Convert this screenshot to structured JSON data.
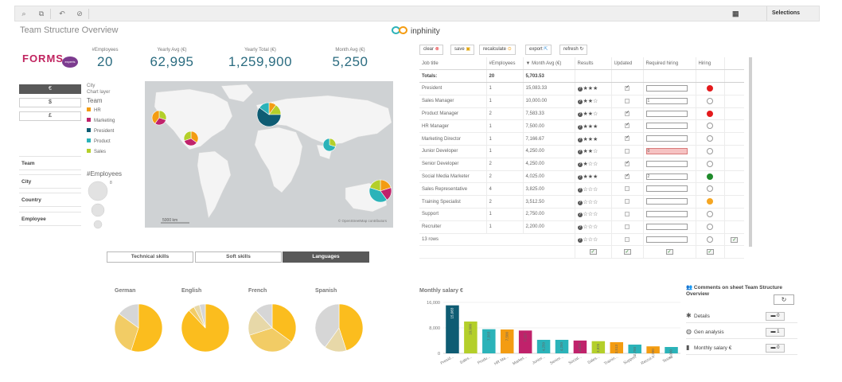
{
  "toolbar": {
    "selections_label": "Selections"
  },
  "sheet_title": "Team Structure Overview",
  "brand": {
    "name": "inphinity"
  },
  "logo": {
    "text": "FORMS",
    "badge": "experts"
  },
  "kpis": [
    {
      "label": "#Employees",
      "value": "20"
    },
    {
      "label": "Yearly Avg (€)",
      "value": "62,995"
    },
    {
      "label": "Yearly Total (€)",
      "value": "1,259,900"
    },
    {
      "label": "Month Avg (€)",
      "value": "5,250"
    }
  ],
  "currency": {
    "options": [
      "€",
      "$",
      "£"
    ],
    "selected": "€"
  },
  "filters": [
    "Team",
    "City",
    "Country",
    "Employee"
  ],
  "legend": {
    "city_label": "City",
    "layer_label": "Chart layer",
    "team_title": "Team",
    "teams": [
      {
        "name": "HR",
        "color": "#f39c12"
      },
      {
        "name": "Marketing",
        "color": "#c0226b"
      },
      {
        "name": "President",
        "color": "#0e5c73"
      },
      {
        "name": "Product",
        "color": "#2bb3b9"
      },
      {
        "name": "Sales",
        "color": "#b4cf2a"
      }
    ],
    "employees_title": "#Employees",
    "employees_max": "8"
  },
  "map": {
    "scale": "5000 km",
    "attribution": "© OpenStreetMap contributors"
  },
  "skill_tabs": {
    "items": [
      "Technical skills",
      "Soft skills",
      "Languages"
    ],
    "selected": "Languages"
  },
  "actions": {
    "clear": "clear",
    "save": "save",
    "recalculate": "recalculate",
    "export": "export",
    "refresh": "refresh"
  },
  "table": {
    "headers": [
      "Job title",
      "#Employees",
      "Month Avg (€)",
      "Results",
      "Updated",
      "Required hiring",
      "Hiring"
    ],
    "totals": {
      "label": "Totals:",
      "employees": "20",
      "month_avg": "5,703.53"
    },
    "rows": [
      {
        "title": "President",
        "employees": "1",
        "avg": "15,083.33",
        "stars": 3,
        "updated": true,
        "hiring": "",
        "hiring_err": false,
        "status": "#e41a1c"
      },
      {
        "title": "Sales Manager",
        "employees": "1",
        "avg": "10,000.00",
        "stars": 2,
        "updated": false,
        "hiring": "1",
        "hiring_err": false,
        "status": ""
      },
      {
        "title": "Product Manager",
        "employees": "2",
        "avg": "7,583.33",
        "stars": 2,
        "updated": true,
        "hiring": "",
        "hiring_err": false,
        "status": "#e41a1c"
      },
      {
        "title": "HR Manager",
        "employees": "1",
        "avg": "7,500.00",
        "stars": 3,
        "updated": true,
        "hiring": "",
        "hiring_err": false,
        "status": ""
      },
      {
        "title": "Marketing Director",
        "employees": "1",
        "avg": "7,166.67",
        "stars": 3,
        "updated": true,
        "hiring": "",
        "hiring_err": false,
        "status": ""
      },
      {
        "title": "Junior Developer",
        "employees": "1",
        "avg": "4,250.00",
        "stars": 2,
        "updated": false,
        "hiring": "0",
        "hiring_err": true,
        "status": ""
      },
      {
        "title": "Senior Developer",
        "employees": "2",
        "avg": "4,250.00",
        "stars": 1,
        "updated": true,
        "hiring": "",
        "hiring_err": false,
        "status": ""
      },
      {
        "title": "Social Media Marketer",
        "employees": "2",
        "avg": "4,025.00",
        "stars": 3,
        "updated": true,
        "hiring": "2",
        "hiring_err": false,
        "status": "#1f8a2b"
      },
      {
        "title": "Sales Representative",
        "employees": "4",
        "avg": "3,825.00",
        "stars": 0,
        "updated": false,
        "hiring": "",
        "hiring_err": false,
        "status": ""
      },
      {
        "title": "Training Specialist",
        "employees": "2",
        "avg": "3,512.50",
        "stars": 0,
        "updated": false,
        "hiring": "",
        "hiring_err": false,
        "status": "#f5a623"
      },
      {
        "title": "Support",
        "employees": "1",
        "avg": "2,750.00",
        "stars": 0,
        "updated": false,
        "hiring": "",
        "hiring_err": false,
        "status": ""
      },
      {
        "title": "Recruiter",
        "employees": "1",
        "avg": "2,200.00",
        "stars": 0,
        "updated": false,
        "hiring": "",
        "hiring_err": false,
        "status": ""
      }
    ],
    "row_count": "13 rows"
  },
  "languages": [
    {
      "name": "German",
      "slices": [
        {
          "value": 55,
          "color": "#fbbd1e"
        },
        {
          "value": 30,
          "color": "#f2cc65"
        },
        {
          "value": 15,
          "color": "#d6d6d6"
        }
      ]
    },
    {
      "name": "English",
      "slices": [
        {
          "value": 88,
          "color": "#fbbd1e"
        },
        {
          "value": 4,
          "color": "#f2cc65"
        },
        {
          "value": 4,
          "color": "#e7d8a8"
        },
        {
          "value": 4,
          "color": "#d6d6d6"
        }
      ]
    },
    {
      "name": "French",
      "slices": [
        {
          "value": 35,
          "color": "#fbbd1e"
        },
        {
          "value": 35,
          "color": "#f2cc65"
        },
        {
          "value": 18,
          "color": "#e7d8a8"
        },
        {
          "value": 12,
          "color": "#d6d6d6"
        }
      ]
    },
    {
      "name": "Spanish",
      "slices": [
        {
          "value": 45,
          "color": "#fbbd1e"
        },
        {
          "value": 15,
          "color": "#e7d8a8"
        },
        {
          "value": 40,
          "color": "#d6d6d6"
        }
      ]
    }
  ],
  "chart_data": {
    "type": "bar",
    "title": "Monthly salary €",
    "categories": [
      "Presid...",
      "Sales...",
      "Produ...",
      "HR Ma...",
      "Market...",
      "Junior...",
      "Senior...",
      "Social...",
      "Sales...",
      "Trainin...",
      "Support",
      "Recrui...",
      "Tester"
    ],
    "values": [
      15083,
      10000,
      7583,
      7500,
      7167,
      4250,
      4250,
      4025,
      3825,
      3513,
      2750,
      2200,
      2000
    ],
    "value_labels": [
      "15,083",
      "10,000",
      "7,583",
      "7,500",
      "7,167",
      "4,250",
      "4,250",
      "4,025",
      "3,825",
      "3,513",
      "2,750",
      "2,200",
      "2,000"
    ],
    "colors": [
      "#0e5c73",
      "#b4cf2a",
      "#2bb3b9",
      "#f39c12",
      "#c0226b",
      "#2bb3b9",
      "#2bb3b9",
      "#c0226b",
      "#b4cf2a",
      "#f39c12",
      "#2bb3b9",
      "#f39c12",
      "#2bb3b9"
    ],
    "yticks": [
      0,
      8000,
      16000
    ],
    "ytick_labels": [
      "0",
      "8,000",
      "16,000"
    ],
    "ylim": [
      0,
      16000
    ],
    "xlabel": "",
    "ylabel": ""
  },
  "comments": {
    "title": "Comments on sheet Team Structure Overview",
    "items": [
      {
        "label": "Details",
        "count": "0",
        "icon": "puzzle-icon"
      },
      {
        "label": "Gen analysis",
        "count": "1",
        "icon": "globe-icon"
      },
      {
        "label": "Monthly salary €",
        "count": "0",
        "icon": "bar-chart-icon"
      }
    ]
  }
}
